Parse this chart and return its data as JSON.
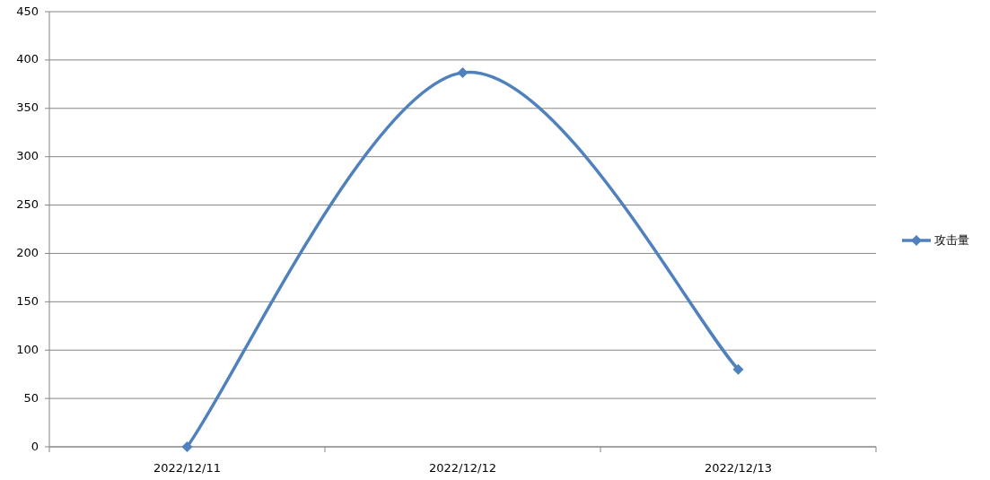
{
  "chart_data": {
    "type": "line",
    "categories": [
      "2022/12/11",
      "2022/12/12",
      "2022/12/13"
    ],
    "series": [
      {
        "name": "攻击量",
        "color": "#4f81bd",
        "values": [
          0,
          387,
          80
        ]
      }
    ],
    "ylim": [
      0,
      450
    ],
    "yticks": [
      0,
      50,
      100,
      150,
      200,
      250,
      300,
      350,
      400,
      450
    ],
    "grid": "y",
    "legend": "right",
    "marker": "diamond",
    "line_style": "solid"
  }
}
